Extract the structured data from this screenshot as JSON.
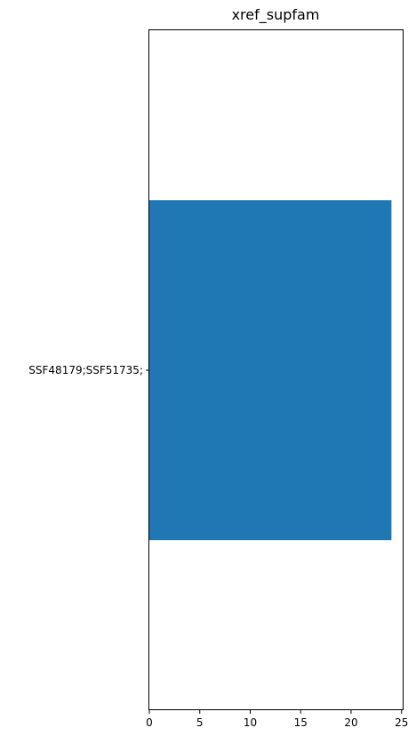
{
  "chart_data": {
    "type": "bar",
    "orientation": "horizontal",
    "title": "xref_supfam",
    "xlabel": "",
    "ylabel": "",
    "categories": [
      "SSF48179;SSF51735;"
    ],
    "values": [
      24
    ],
    "xlim": [
      0,
      25.2
    ],
    "xticks": [
      "0",
      "5",
      "10",
      "15",
      "20",
      "25"
    ],
    "grid": false,
    "colors": {
      "bar": "#1f77b4",
      "axis": "#000000"
    }
  }
}
